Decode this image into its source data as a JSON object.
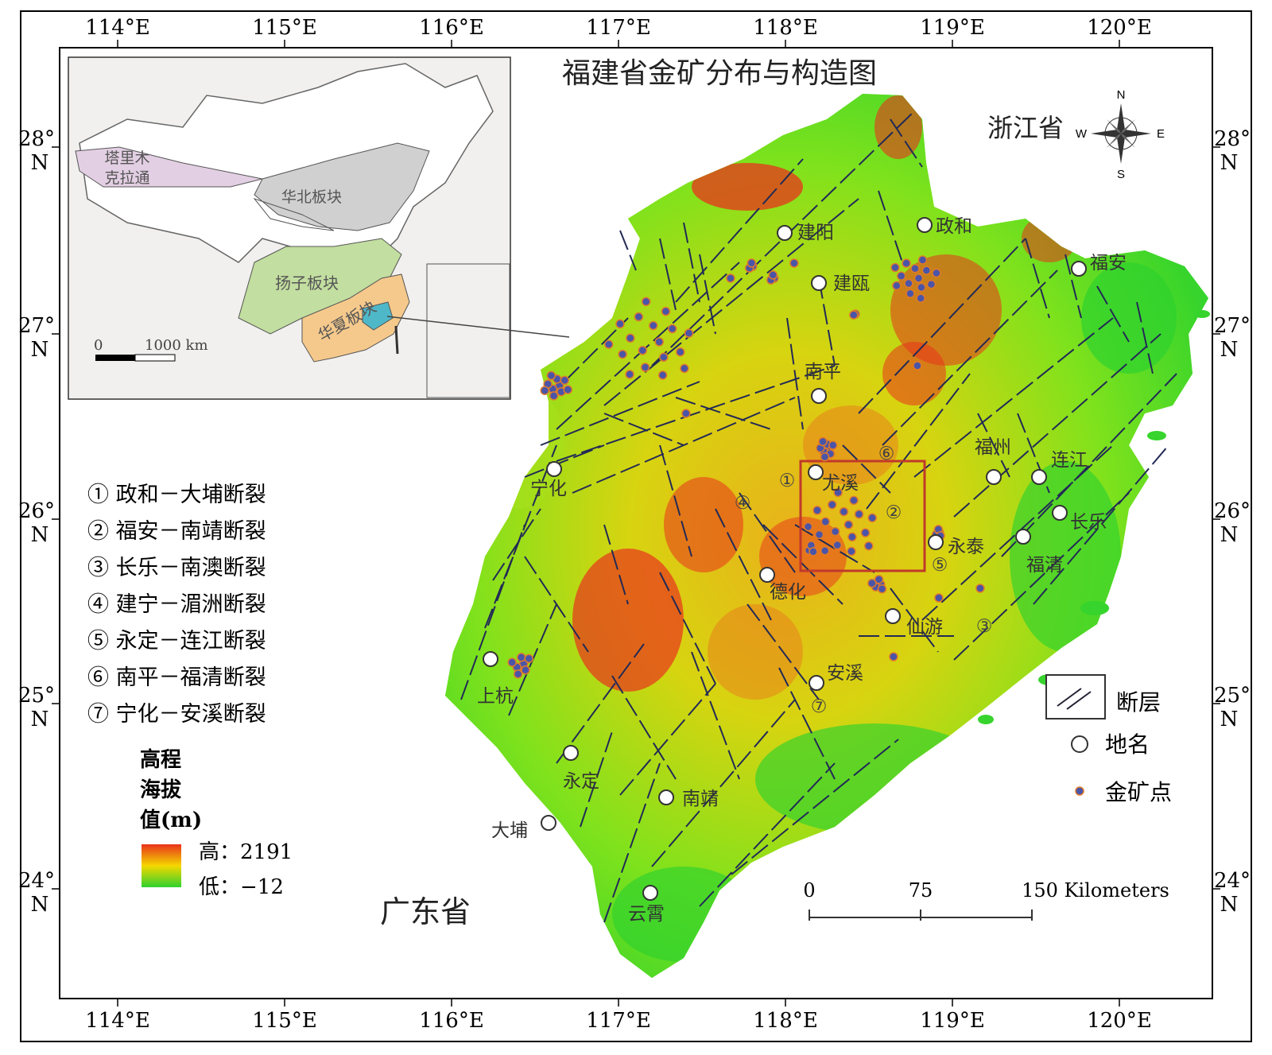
{
  "title": "福建省金矿分布与构造图",
  "top_ticks": [
    "114°E",
    "115°E",
    "116°E",
    "117°E",
    "118°E",
    "119°E",
    "120°E"
  ],
  "bottom_ticks": [
    "114°E",
    "115°E",
    "116°E",
    "117°E",
    "118°E",
    "119°E",
    "120°E"
  ],
  "left_ticks": [
    {
      "deg": "28°",
      "hem": "N"
    },
    {
      "deg": "27°",
      "hem": "N"
    },
    {
      "deg": "26°",
      "hem": "N"
    },
    {
      "deg": "25°",
      "hem": "N"
    },
    {
      "deg": "24°",
      "hem": "N"
    }
  ],
  "right_ticks": [
    {
      "deg": "28°",
      "hem": "N"
    },
    {
      "deg": "27°",
      "hem": "N"
    },
    {
      "deg": "26°",
      "hem": "N"
    },
    {
      "deg": "25°",
      "hem": "N"
    },
    {
      "deg": "24°",
      "hem": "N"
    }
  ],
  "region_labels": {
    "zhejiang": "浙江省",
    "guangdong": "广东省"
  },
  "compass": {
    "n": "N",
    "s": "S",
    "e": "E",
    "w": "W"
  },
  "places": [
    {
      "name": "建阳"
    },
    {
      "name": "政和"
    },
    {
      "name": "建瓯"
    },
    {
      "name": "福安"
    },
    {
      "name": "南平"
    },
    {
      "name": "宁化"
    },
    {
      "name": "尤溪"
    },
    {
      "name": "福州"
    },
    {
      "name": "连江"
    },
    {
      "name": "长乐"
    },
    {
      "name": "永泰"
    },
    {
      "name": "福清"
    },
    {
      "name": "德化"
    },
    {
      "name": "仙游"
    },
    {
      "name": "安溪"
    },
    {
      "name": "上杭"
    },
    {
      "name": "永定"
    },
    {
      "name": "南靖"
    },
    {
      "name": "大埔"
    },
    {
      "name": "云霄"
    }
  ],
  "map_fault_numbers": [
    "①",
    "②",
    "③",
    "④",
    "⑤",
    "⑥",
    "⑦"
  ],
  "fault_legend": [
    "① 政和－大埔断裂",
    "② 福安－南靖断裂",
    "③ 长乐－南澳断裂",
    "④ 建宁－湄洲断裂",
    "⑤ 永定－连江断裂",
    "⑥ 南平－福清断裂",
    "⑦ 宁化－安溪断裂"
  ],
  "elevation_legend": {
    "title_lines": [
      "高程",
      "海拔",
      "值(m)"
    ],
    "high": "高：2191",
    "low": "低：−12",
    "high_color": "#e8331c",
    "mid_color": "#f5d800",
    "low_color": "#2ed12e"
  },
  "symbol_legend": {
    "fault": "断层",
    "place": "地名",
    "gold": "金矿点"
  },
  "scale_bar": {
    "zero": "0",
    "mid": "75",
    "end": "150 Kilometers"
  },
  "inset": {
    "tarim": [
      "塔里木",
      "克拉通"
    ],
    "north_china": "华北板块",
    "yangtze": "扬子板块",
    "cathaysia": "华夏板块",
    "scale_zero": "0",
    "scale_len": "1000 km"
  },
  "colors": {
    "gold_dot": "#4a55a8",
    "gold_rim": "#e07a2a",
    "fault_line": "#222a55",
    "study_box": "#c0392b",
    "tarim_fill": "#e3cfe3",
    "north_china_fill": "#d0d0d0",
    "yangtze_fill": "#c2dea0",
    "cathaysia_fill": "#f5c98c",
    "fujian_fill": "#4fb8c8"
  }
}
